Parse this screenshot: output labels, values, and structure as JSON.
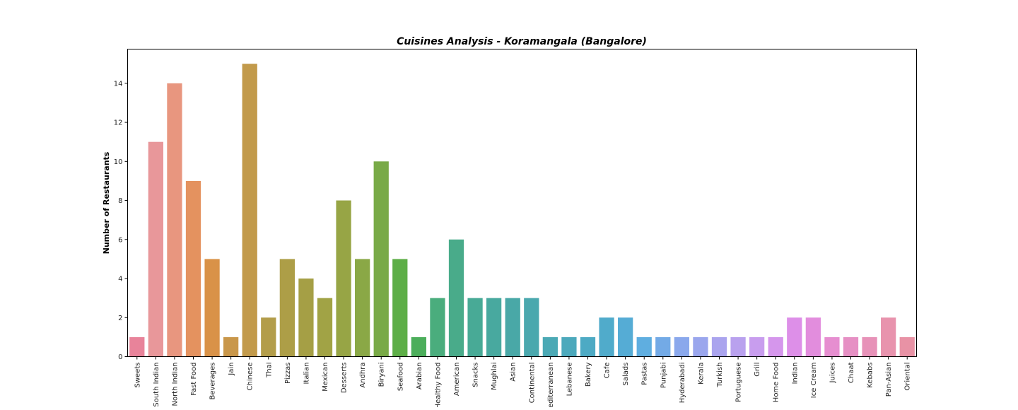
{
  "chart_data": {
    "type": "bar",
    "title": "Cuisines Analysis - Koramangala (Bangalore)",
    "xlabel": "",
    "ylabel": "Number of Restaurants",
    "ylim": [
      0,
      15.75
    ],
    "yticks": [
      0,
      2,
      4,
      6,
      8,
      10,
      12,
      14
    ],
    "grid": false,
    "categories": [
      "Sweets",
      "South Indian",
      "North Indian",
      "Fast Food",
      "Beverages",
      "Jain",
      "Chinese",
      "Thai",
      "Pizzas",
      "Italian",
      "Mexican",
      "Desserts",
      "Andhra",
      "Biryani",
      "Seafood",
      "Arabian",
      "Healthy Food",
      "American",
      "Snacks",
      "Mughlai",
      "Asian",
      "Continental",
      "Mediterranean",
      "Lebanese",
      "Bakery",
      "Cafe",
      "Salads",
      "Pastas",
      "Punjabi",
      "Hyderabadi",
      "Kerala",
      "Turkish",
      "Portuguese",
      "Grill",
      "Home Food",
      "Indian",
      "Ice Cream",
      "Juices",
      "Chaat",
      "Kebabs",
      "Pan-Asian",
      "Oriental"
    ],
    "values": [
      1,
      11,
      14,
      9,
      5,
      1,
      15,
      2,
      5,
      4,
      3,
      8,
      5,
      10,
      5,
      1,
      3,
      6,
      3,
      3,
      3,
      3,
      1,
      1,
      1,
      2,
      2,
      1,
      1,
      1,
      1,
      1,
      1,
      1,
      1,
      2,
      2,
      1,
      1,
      1,
      2,
      1
    ],
    "colors": [
      "#e8839a",
      "#e8979a",
      "#e8967f",
      "#e4925f",
      "#d99248",
      "#c9974a",
      "#c29a4b",
      "#b39d4a",
      "#ad9e47",
      "#a59f45",
      "#a1a345",
      "#97a545",
      "#8aa846",
      "#79aa47",
      "#5dae47",
      "#4cae5b",
      "#4aad7d",
      "#49ab8a",
      "#48aa96",
      "#48a99f",
      "#49a8a7",
      "#4aa8ae",
      "#4ba9b5",
      "#4ca9bc",
      "#4daac4",
      "#50abcb",
      "#55acd5",
      "#5faee0",
      "#73aae6",
      "#8aa8ec",
      "#9aa6ed",
      "#aaa4ee",
      "#b9a1ee",
      "#c89dee",
      "#d596ec",
      "#dd8fe8",
      "#e28ddd",
      "#e68ed0",
      "#e690c4",
      "#e792b8",
      "#e893ad",
      "#e892a5"
    ]
  }
}
